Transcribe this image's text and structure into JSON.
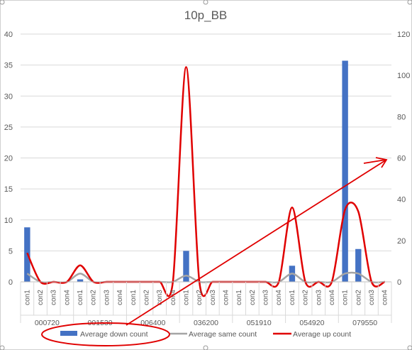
{
  "chart_data": {
    "type": "bar",
    "title": "10p_BB",
    "primary_axis": {
      "ticks": [
        "0",
        "5",
        "10",
        "15",
        "20",
        "25",
        "30",
        "35",
        "40"
      ],
      "range": [
        0,
        40
      ]
    },
    "secondary_axis": {
      "ticks": [
        "0",
        "20",
        "40",
        "60",
        "80",
        "100",
        "120"
      ],
      "range": [
        0,
        120
      ]
    },
    "groups": [
      "000720",
      "001530",
      "006400",
      "036200",
      "051910",
      "054920",
      "079550"
    ],
    "sub_categories": [
      "con1",
      "con2",
      "con3",
      "con4"
    ],
    "series": [
      {
        "name": "Average down count",
        "type": "bar",
        "axis": "primary",
        "color": "#4472C4",
        "values": [
          8.8,
          0,
          0,
          0,
          0.4,
          0,
          0,
          0,
          0,
          0,
          0,
          0,
          5.0,
          0,
          0,
          0,
          0,
          0,
          0,
          0,
          2.6,
          0,
          0,
          0,
          35.7,
          5.3,
          0,
          0
        ]
      },
      {
        "name": "Average same count",
        "type": "line",
        "axis": "secondary",
        "color": "#A5A5A5",
        "values": [
          4,
          0,
          0,
          0,
          4,
          0,
          0,
          0,
          0,
          0,
          0,
          0,
          3,
          0,
          0,
          0,
          0,
          0,
          0,
          0,
          4,
          0,
          0,
          0,
          4,
          4,
          0,
          0
        ]
      },
      {
        "name": "Average up count",
        "type": "line",
        "axis": "secondary",
        "color": "#E00000",
        "values": [
          14,
          0,
          0,
          0,
          8,
          0,
          0,
          0,
          0,
          0,
          0,
          0,
          104,
          0,
          0,
          0,
          0,
          0,
          0,
          0,
          36,
          0,
          0,
          0,
          35,
          34,
          0,
          0
        ]
      }
    ],
    "annotation_color": "#E00000",
    "grid": true,
    "legend": "bottom"
  }
}
